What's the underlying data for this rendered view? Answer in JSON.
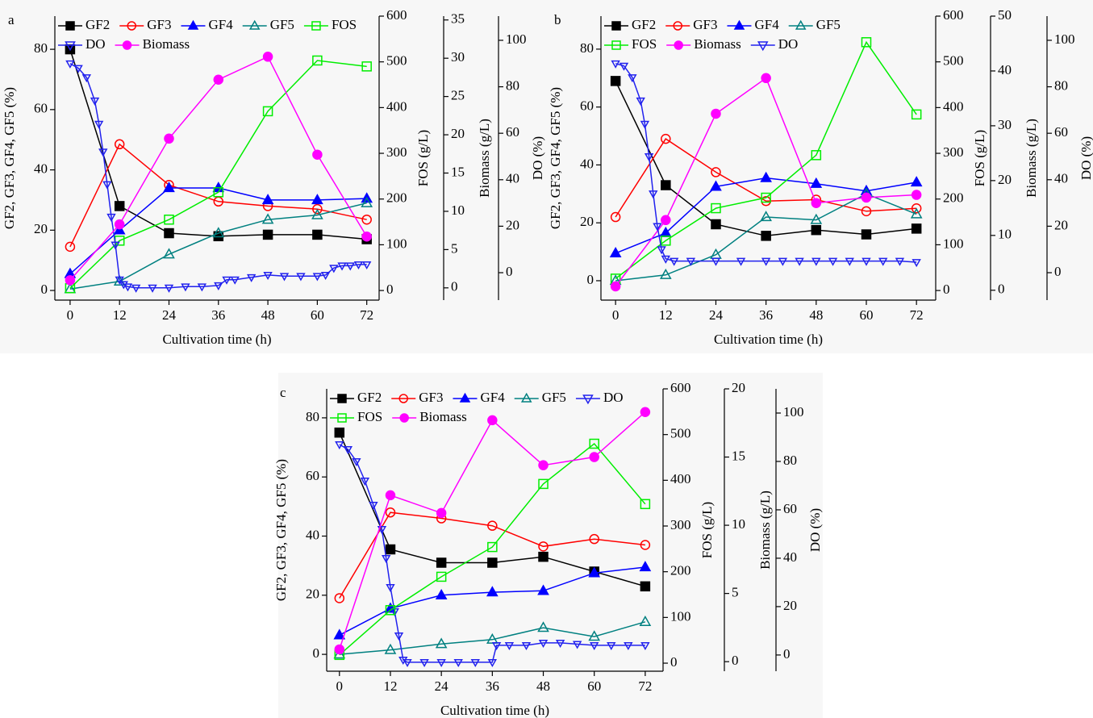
{
  "chart_data": [
    {
      "type": "line",
      "panel_label": "a",
      "x_label": "Cultivation time (h)",
      "y_label": "GF2, GF3, GF4, GF5 (%)",
      "y2_label": "FOS (g/L)",
      "y3_label": "Biomass (g/L)",
      "y4_label": "DO (%)",
      "x": [
        0,
        12,
        24,
        36,
        48,
        60,
        72
      ],
      "xlim": [
        -3.7,
        75
      ],
      "xticks": [
        0,
        12,
        24,
        36,
        48,
        60,
        72
      ],
      "ylim": [
        -3.2,
        91
      ],
      "yticks": [
        0,
        20,
        40,
        60,
        80
      ],
      "y2lim": [
        -21,
        600
      ],
      "y2ticks": [
        0,
        100,
        200,
        300,
        400,
        500,
        600
      ],
      "y3lim": [
        -1.6,
        35.5
      ],
      "y3ticks": [
        0,
        5,
        10,
        15,
        20,
        25,
        30,
        35
      ],
      "y4lim": [
        -11.8,
        110.4
      ],
      "y4ticks": [
        0,
        20,
        40,
        60,
        80,
        100
      ],
      "series": [
        {
          "name": "GF2",
          "color": "#000000",
          "marker": "square",
          "filled": true,
          "values": [
            80,
            28,
            19,
            18,
            18.5,
            18.5,
            17
          ]
        },
        {
          "name": "GF3",
          "color": "#ff0000",
          "marker": "circle",
          "filled": false,
          "values": [
            14.5,
            48.5,
            35,
            29.5,
            28,
            27,
            23.5
          ]
        },
        {
          "name": "GF4",
          "color": "#0000ff",
          "marker": "triangle-up",
          "filled": true,
          "values": [
            5.5,
            20,
            34,
            34,
            30,
            30,
            30.5
          ]
        },
        {
          "name": "GF5",
          "color": "#008080",
          "marker": "triangle-up",
          "filled": false,
          "values": [
            0.5,
            3,
            12,
            19,
            23.5,
            25,
            29
          ]
        },
        {
          "name": "FOS",
          "color": "#00ee00",
          "marker": "square",
          "filled": false,
          "axis": "y2",
          "values": [
            5,
            109,
            155,
            215,
            392,
            503,
            490
          ]
        },
        {
          "name": "DO",
          "color": "#2222ee",
          "marker": "triangle-down",
          "filled": false,
          "axis": "y4",
          "x": [
            0,
            2,
            4,
            6,
            7,
            8,
            9,
            10,
            11,
            12,
            13,
            14,
            16,
            20,
            24,
            28,
            32,
            36,
            38,
            40,
            44,
            48,
            52,
            56,
            60,
            62,
            64,
            66,
            68,
            70,
            72
          ],
          "values": [
            90,
            88,
            84,
            74,
            64,
            52,
            38,
            24,
            12,
            -3,
            -5,
            -6,
            -6.5,
            -6.5,
            -6.5,
            -6,
            -6,
            -5.5,
            -3,
            -3,
            -2,
            -1,
            -1.5,
            -1.5,
            -1.5,
            -1,
            2,
            3,
            3,
            3.5,
            3.5
          ]
        },
        {
          "name": "Biomass",
          "color": "#ff00ff",
          "marker": "circle",
          "filled": true,
          "axis": "y3",
          "values": [
            1,
            8.3,
            19.5,
            27.2,
            30.2,
            17.4,
            6.7
          ]
        }
      ]
    },
    {
      "type": "line",
      "panel_label": "b",
      "x_label": "Cultivation time (h)",
      "y_label": "GF2, GF3, GF4, GF5 (%)",
      "y2_label": "FOS (g/L)",
      "y3_label": "Biomass (g/L)",
      "y4_label": "DO (%)",
      "x": [
        0,
        12,
        24,
        36,
        48,
        60,
        72
      ],
      "xlim": [
        -3.5,
        76.6
      ],
      "xticks": [
        0,
        12,
        24,
        36,
        48,
        60,
        72
      ],
      "ylim": [
        -6.7,
        91.4
      ],
      "yticks": [
        0,
        20,
        40,
        60,
        80
      ],
      "y2lim": [
        -21,
        600
      ],
      "y2ticks": [
        0,
        100,
        200,
        300,
        400,
        500,
        600
      ],
      "y3lim": [
        -1.8,
        50
      ],
      "y3ticks": [
        0,
        10,
        20,
        30,
        40,
        50
      ],
      "y4lim": [
        -11.8,
        110.4
      ],
      "y4ticks": [
        0,
        20,
        40,
        60,
        80,
        100
      ],
      "series": [
        {
          "name": "GF2",
          "color": "#000000",
          "marker": "square",
          "filled": true,
          "values": [
            69,
            33,
            19.5,
            15.5,
            17.5,
            16,
            18
          ]
        },
        {
          "name": "GF3",
          "color": "#ff0000",
          "marker": "circle",
          "filled": false,
          "values": [
            22,
            49,
            37.5,
            27.5,
            28,
            24,
            25
          ]
        },
        {
          "name": "GF4",
          "color": "#0000ff",
          "marker": "triangle-up",
          "filled": true,
          "values": [
            9.5,
            16.5,
            32.5,
            35.5,
            33.5,
            31,
            34
          ]
        },
        {
          "name": "GF5",
          "color": "#008080",
          "marker": "triangle-up",
          "filled": false,
          "values": [
            0,
            2,
            9,
            22,
            21,
            30,
            23
          ]
        },
        {
          "name": "FOS",
          "color": "#00ee00",
          "marker": "square",
          "filled": false,
          "axis": "y2",
          "values": [
            26,
            109,
            180,
            203,
            296,
            543,
            385
          ]
        },
        {
          "name": "Biomass",
          "color": "#ff00ff",
          "marker": "circle",
          "filled": true,
          "axis": "y3",
          "values": [
            0.7,
            12.8,
            32.2,
            38.7,
            15.9,
            16.9,
            17.4
          ]
        },
        {
          "name": "DO",
          "color": "#2222ee",
          "marker": "triangle-down",
          "filled": false,
          "axis": "y4",
          "x": [
            0,
            2,
            4,
            6,
            7,
            8,
            9,
            10,
            11,
            12,
            14,
            18,
            24,
            30,
            36,
            40,
            44,
            48,
            52,
            56,
            60,
            64,
            68,
            72
          ],
          "values": [
            90,
            89,
            84,
            74,
            64,
            50,
            34,
            20,
            10,
            6,
            5,
            5,
            5,
            5,
            5,
            5,
            5,
            5,
            5,
            5,
            5,
            5,
            5,
            4.5
          ]
        }
      ]
    },
    {
      "type": "line",
      "panel_label": "c",
      "x_label": "Cultivation time (h)",
      "y_label": "GF2, GF3, GF4, GF5 (%)",
      "y2_label": "FOS (g/L)",
      "y3_label": "Biomass (g/L)",
      "y4_label": "DO (%)",
      "x": [
        0,
        12,
        24,
        36,
        48,
        60,
        72
      ],
      "xlim": [
        -3,
        76.2
      ],
      "xticks": [
        0,
        12,
        24,
        36,
        48,
        60,
        72
      ],
      "ylim": [
        -5.7,
        89.8
      ],
      "yticks": [
        0,
        20,
        40,
        60,
        80
      ],
      "y2lim": [
        -17.6,
        600
      ],
      "y2ticks": [
        0,
        100,
        200,
        300,
        400,
        500,
        600
      ],
      "y3lim": [
        -0.7,
        20
      ],
      "y3ticks": [
        0,
        5,
        10,
        15,
        20
      ],
      "y4lim": [
        -6.7,
        110
      ],
      "y4ticks": [
        0,
        20,
        40,
        60,
        80,
        100
      ],
      "series": [
        {
          "name": "GF2",
          "color": "#000000",
          "marker": "square",
          "filled": true,
          "values": [
            75,
            35.5,
            31,
            31,
            33,
            28,
            23
          ]
        },
        {
          "name": "GF3",
          "color": "#ff0000",
          "marker": "circle",
          "filled": false,
          "values": [
            19,
            48,
            46,
            43.5,
            36.5,
            39,
            37
          ]
        },
        {
          "name": "GF4",
          "color": "#0000ff",
          "marker": "triangle-up",
          "filled": true,
          "values": [
            6.5,
            15.5,
            20,
            21,
            21.5,
            27.5,
            29.5
          ]
        },
        {
          "name": "GF5",
          "color": "#008080",
          "marker": "triangle-up",
          "filled": false,
          "values": [
            0,
            1.5,
            3.5,
            5,
            9,
            6,
            11
          ]
        },
        {
          "name": "DO",
          "color": "#2222ee",
          "marker": "triangle-down",
          "filled": false,
          "axis": "y4",
          "x": [
            0,
            2,
            4,
            6,
            8,
            10,
            11,
            12,
            13,
            14,
            15,
            16,
            20,
            24,
            28,
            32,
            36,
            37,
            40,
            44,
            48,
            52,
            56,
            60,
            64,
            68,
            72
          ],
          "values": [
            87,
            85,
            80,
            72,
            62,
            52,
            40,
            28,
            18,
            8,
            -2,
            -3,
            -3,
            -3,
            -3,
            -3,
            -3,
            4,
            4,
            4,
            5,
            5,
            4.5,
            4,
            4,
            4,
            4
          ]
        },
        {
          "name": "FOS",
          "color": "#00ee00",
          "marker": "square",
          "filled": false,
          "axis": "y2",
          "values": [
            18,
            116,
            189,
            254,
            392,
            480,
            348
          ]
        },
        {
          "name": "Biomass",
          "color": "#ff00ff",
          "marker": "circle",
          "filled": true,
          "axis": "y3",
          "values": [
            0.9,
            12.2,
            10.9,
            17.7,
            14.4,
            15.0,
            18.3
          ]
        }
      ]
    }
  ]
}
